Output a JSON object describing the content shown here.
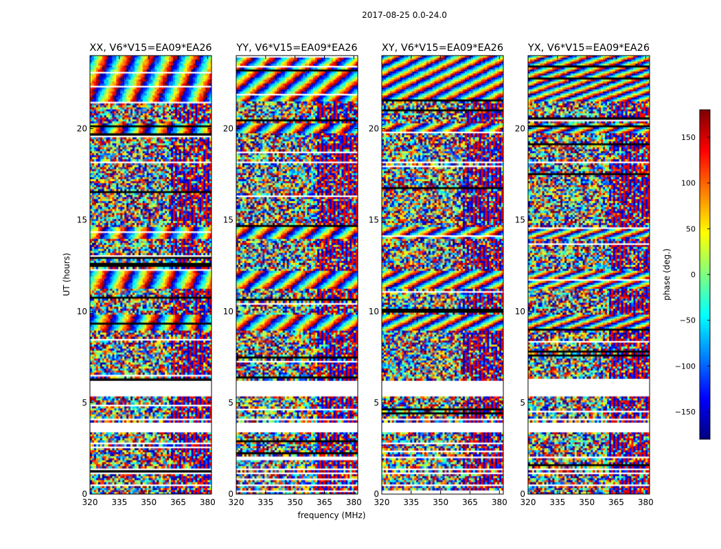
{
  "figure": {
    "suptitle": "2017-08-25 0.0-24.0",
    "xlabel": "frequency (MHz)",
    "ylabel": "UT (hours)"
  },
  "chart_data": {
    "type": "heatmap",
    "xlim": [
      320,
      382
    ],
    "ylim": [
      0,
      24
    ],
    "xticks": [
      320,
      335,
      350,
      365,
      380
    ],
    "yticks": [
      0,
      5,
      10,
      15,
      20
    ],
    "colorbar": {
      "label": "phase (deg.)",
      "range": [
        -180,
        180
      ],
      "ticks": [
        150,
        100,
        50,
        0,
        -50,
        -100,
        -150
      ],
      "tick_labels": [
        "150",
        "100",
        "50",
        "0",
        "−50",
        "−100",
        "−150"
      ],
      "colormap": [
        "#00007f",
        "#0000ff",
        "#007fff",
        "#00ffff",
        "#7fff7f",
        "#ffff00",
        "#ff7f00",
        "#ff0000",
        "#7f0000"
      ]
    },
    "panels": [
      {
        "title": "XX, V6*V15=EA09*EA26",
        "pol": "XX"
      },
      {
        "title": "YY, V6*V15=EA09*EA26",
        "pol": "YY"
      },
      {
        "title": "XY, V6*V15=EA09*EA26",
        "pol": "XY"
      },
      {
        "title": "YX, V6*V15=EA09*EA26",
        "pol": "YX"
      }
    ],
    "flagged_time_ranges_hours": [
      [
        0.4,
        0.55
      ],
      [
        1.05,
        1.15
      ],
      [
        1.35,
        1.45
      ],
      [
        3.4,
        3.95
      ],
      [
        4.05,
        4.2
      ],
      [
        5.3,
        6.2
      ],
      [
        18.1,
        18.25
      ]
    ],
    "fringe_regions_hours": [
      [
        21.5,
        24.0
      ],
      [
        19.8,
        20.3
      ],
      [
        11.2,
        12.2
      ],
      [
        9.0,
        9.8
      ],
      [
        14.0,
        14.6
      ]
    ]
  }
}
